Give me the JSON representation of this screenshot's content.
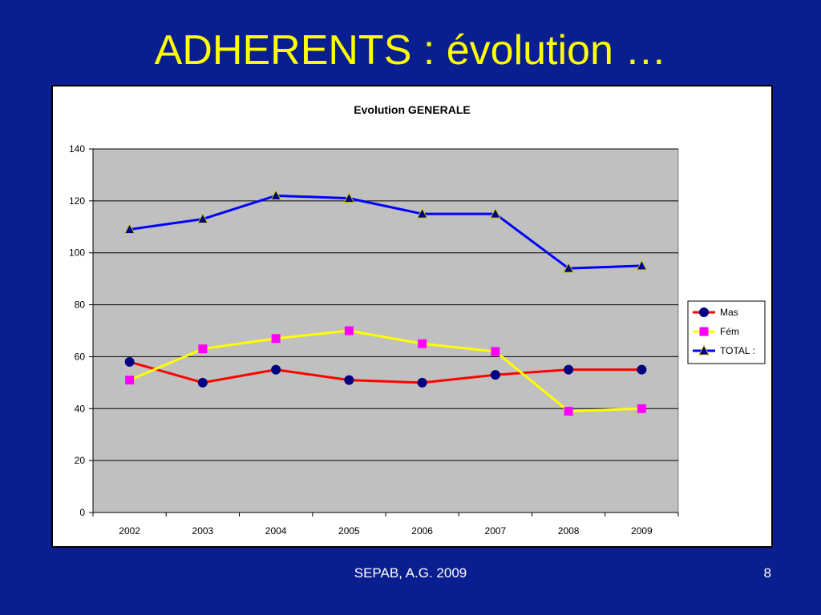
{
  "slide": {
    "title": "ADHERENTS : évolution …",
    "footer": "SEPAB, A.G. 2009",
    "page_number": "8",
    "background_color": "#0a1f8f",
    "title_color": "#ffff00"
  },
  "chart_data": {
    "type": "line",
    "title": "Evolution GENERALE",
    "xlabel": "",
    "ylabel": "",
    "categories": [
      "2002",
      "2003",
      "2004",
      "2005",
      "2006",
      "2007",
      "2008",
      "2009"
    ],
    "ylim": [
      0,
      140
    ],
    "yticks": [
      0,
      20,
      40,
      60,
      80,
      100,
      120,
      140
    ],
    "grid": true,
    "plot_background": "#c0c0c0",
    "legend_position": "right",
    "series": [
      {
        "name": "Mas",
        "values": [
          58,
          50,
          55,
          51,
          50,
          53,
          55,
          55
        ],
        "line_color": "#ff0000",
        "marker_color": "#000080",
        "marker": "circle"
      },
      {
        "name": "Fém",
        "values": [
          51,
          63,
          67,
          70,
          65,
          62,
          39,
          40
        ],
        "line_color": "#ffff00",
        "marker_color": "#ff00ff",
        "marker": "square"
      },
      {
        "name": "TOTAL :",
        "values": [
          109,
          113,
          122,
          121,
          115,
          115,
          94,
          95
        ],
        "line_color": "#0000ff",
        "marker_color": "#000080",
        "marker": "triangle"
      }
    ]
  }
}
